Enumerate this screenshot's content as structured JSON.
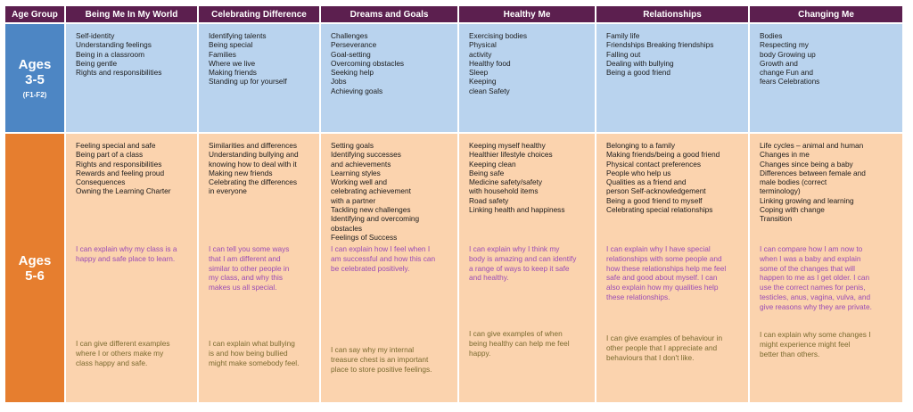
{
  "headers": [
    "Age Group",
    "Being Me In My World",
    "Celebrating Difference",
    "Dreams and Goals",
    "Healthy Me",
    "Relationships",
    "Changing Me"
  ],
  "colors": {
    "header_bg": "#5c1f4f",
    "age_blue": "#4d86c4",
    "age_orange": "#e67e2f",
    "row_blue": "#b9d3ee",
    "row_orange": "#fbd3ae",
    "statement_purple": "#9a4bb5",
    "statement_olive": "#7a6a2f"
  },
  "row1": {
    "age": {
      "line1": "Ages",
      "line2": "3-5",
      "sub": "(F1-F2)"
    },
    "cells": [
      {
        "topics": [
          "Self-identity",
          "Understanding feelings",
          "Being in a classroom",
          "Being gentle",
          "Rights and responsibilities"
        ]
      },
      {
        "topics": [
          "Identifying talents",
          "Being special",
          "Families",
          "Where we live",
          "Making friends",
          "Standing up for yourself"
        ]
      },
      {
        "topics": [
          "Challenges",
          "Perseverance",
          "Goal-setting",
          "Overcoming obstacles",
          "Seeking help",
          "Jobs",
          "Achieving goals"
        ]
      },
      {
        "topics": [
          "Exercising bodies",
          "Physical",
          "activity",
          "Healthy food",
          "Sleep",
          "Keeping",
          "clean Safety"
        ]
      },
      {
        "topics": [
          "Family life",
          "Friendships Breaking friendships",
          "Falling out",
          "Dealing with bullying",
          "Being a good friend"
        ]
      },
      {
        "topics": [
          "Bodies",
          "Respecting my",
          "body Growing up",
          "Growth and",
          "change Fun and",
          "fears Celebrations"
        ]
      }
    ]
  },
  "row2": {
    "age": {
      "line1": "Ages",
      "line2": "5-6"
    },
    "cells": [
      {
        "topics": [
          "Feeling special and safe",
          "Being part of a class",
          "Rights and responsibilities",
          "Rewards and feeling proud",
          "Consequences",
          "Owning the Learning Charter"
        ],
        "purple": [
          "I can explain why my class is a",
          "happy and safe place to learn."
        ],
        "olive": [
          "I can give different examples",
          "where I or others make my",
          "class happy and safe."
        ]
      },
      {
        "topics": [
          "Similarities and differences",
          "Understanding bullying and",
          "knowing how to deal with it",
          "Making new friends",
          "Celebrating the differences",
          "in everyone"
        ],
        "purple": [
          "I can tell you some ways",
          "that I am different and",
          "similar to other people in",
          "my class, and why this",
          "makes us all special."
        ],
        "olive": [
          "I can explain what bullying",
          "is and how being bullied",
          "might make somebody feel."
        ]
      },
      {
        "topics": [
          "Setting goals",
          "Identifying successes",
          "and achievements",
          "Learning styles",
          "Working well and",
          "celebrating achievement",
          "with a partner",
          "Tackling new challenges",
          "Identifying and overcoming",
          "obstacles",
          "Feelings of Success"
        ],
        "purple": [
          "I can explain how I feel when I",
          "am successful and how this can",
          "be celebrated positively."
        ],
        "olive": [
          "I can say why my internal",
          "treasure chest is an important",
          "place to store positive feelings."
        ]
      },
      {
        "topics": [
          "Keeping myself healthy",
          "Healthier lifestyle choices",
          "Keeping clean",
          "Being safe",
          "Medicine safety/safety",
          "with household items",
          "Road safety",
          "Linking health and happiness"
        ],
        "purple": [
          "I can explain why I think my",
          "body is amazing and can identify",
          "a range of ways to keep it safe",
          "and healthy."
        ],
        "olive": [
          "I can give examples of when",
          "being healthy can help me feel",
          "happy."
        ]
      },
      {
        "topics": [
          "Belonging to a family",
          "Making friends/being a good friend",
          "Physical contact preferences",
          "People who help us",
          "Qualities as a friend and",
          "person Self-acknowledgement",
          "Being a good friend to myself",
          "Celebrating special relationships"
        ],
        "purple": [
          "I can explain why I have special",
          "relationships with some people and",
          "how these relationships help me feel",
          "safe and good about myself. I can",
          "also explain how my qualities help",
          "these relationships."
        ],
        "olive": [
          "I can give examples of behaviour in",
          "other people that I appreciate and",
          "behaviours that I don't like."
        ]
      },
      {
        "topics": [
          "Life cycles – animal and human",
          "Changes in me",
          "Changes since being a baby",
          "Differences between female and",
          "male bodies (correct",
          "terminology)",
          "Linking growing and learning",
          "Coping with change",
          "Transition"
        ],
        "purple": [
          "I can compare how I am now to",
          "when I was a baby and explain",
          "some of the changes that will",
          "happen to me as I get older. I can",
          "use the correct names for penis,",
          "testicles, anus, vagina, vulva, and",
          "give reasons why they are private."
        ],
        "olive": [
          "I can explain why some changes I",
          "might experience might feel",
          "better than others."
        ]
      }
    ]
  }
}
